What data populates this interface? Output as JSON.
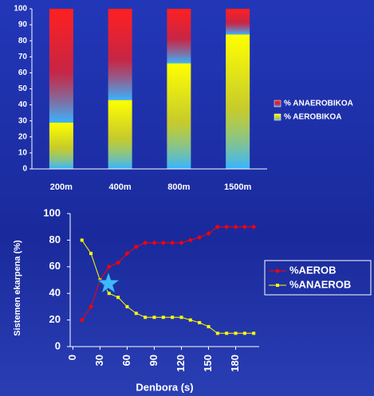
{
  "chart_data": [
    {
      "type": "stacked_bar",
      "categories": [
        "200m",
        "400m",
        "800m",
        "1500m"
      ],
      "series": [
        {
          "name": "% AEROBIKOA",
          "color": "#ffff00",
          "values": [
            29,
            43,
            66,
            84
          ]
        },
        {
          "name": "% ANAEROBIKOA",
          "color": "#ff2020",
          "values": [
            71,
            57,
            34,
            16
          ]
        }
      ],
      "ylim": [
        0,
        100
      ],
      "yticks": [
        0,
        10,
        20,
        30,
        40,
        50,
        60,
        70,
        80,
        90,
        100
      ],
      "legend": "right"
    },
    {
      "type": "line",
      "x_label": "Denbora (s)",
      "y_label": "Sistemen ekarpena (%)",
      "x": [
        10,
        20,
        30,
        40,
        50,
        60,
        70,
        80,
        90,
        100,
        110,
        120,
        130,
        140,
        150,
        160,
        170,
        180,
        190,
        200
      ],
      "series": [
        {
          "name": "%AEROB",
          "color": "#ff0000",
          "marker": "diamond",
          "values": [
            20,
            30,
            50,
            60,
            63,
            70,
            75,
            78,
            78,
            78,
            78,
            78,
            80,
            82,
            85,
            90,
            90,
            90,
            90,
            90
          ]
        },
        {
          "name": "%ANAEROB",
          "color": "#ffff00",
          "marker": "square",
          "values": [
            80,
            70,
            50,
            40,
            37,
            30,
            25,
            22,
            22,
            22,
            22,
            22,
            20,
            18,
            15,
            10,
            10,
            10,
            10,
            10
          ]
        }
      ],
      "xlim": [
        -3,
        206
      ],
      "xticks": [
        0,
        30,
        60,
        90,
        120,
        150,
        180
      ],
      "ylim": [
        0,
        100
      ],
      "yticks": [
        0,
        20,
        40,
        60,
        80,
        100
      ],
      "legend": "right"
    }
  ]
}
